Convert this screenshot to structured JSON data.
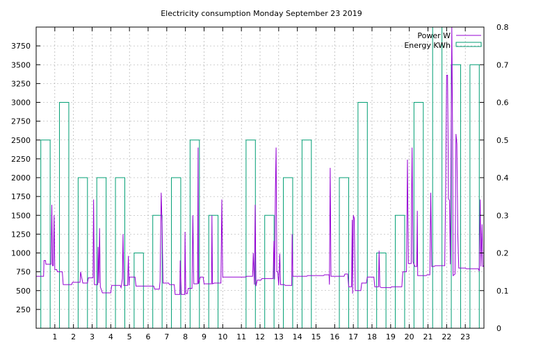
{
  "chart_data": {
    "type": "line",
    "title": "Electricity consumption Monday September 23 2019",
    "x_ticks": [
      "1",
      "2",
      "3",
      "4",
      "5",
      "6",
      "7",
      "8",
      "9",
      "10",
      "11",
      "12",
      "13",
      "14",
      "15",
      "16",
      "17",
      "18",
      "19",
      "20",
      "21",
      "22",
      "23"
    ],
    "xlim": [
      0,
      24
    ],
    "y_left_ticks": [
      "250",
      "500",
      "750",
      "1000",
      "1250",
      "1500",
      "1750",
      "2000",
      "2250",
      "2500",
      "2750",
      "3000",
      "3250",
      "3500",
      "3750"
    ],
    "ylim_left": [
      0,
      4000
    ],
    "y_right_ticks": [
      "0",
      "0.1",
      "0.2",
      "0.3",
      "0.4",
      "0.5",
      "0.6",
      "0.7",
      "0.8"
    ],
    "ylim_right": [
      0,
      0.8
    ],
    "grid": true,
    "legend_position": "top-right",
    "colors": {
      "power": "#9400d3",
      "energy": "#009e73"
    },
    "series": [
      {
        "name": "Power W",
        "axis": "left",
        "style": "line",
        "points": [
          [
            0.0,
            690
          ],
          [
            0.4,
            690
          ],
          [
            0.42,
            900
          ],
          [
            0.5,
            900
          ],
          [
            0.52,
            850
          ],
          [
            0.8,
            850
          ],
          [
            0.84,
            1640
          ],
          [
            0.88,
            830
          ],
          [
            0.92,
            830
          ],
          [
            0.96,
            1500
          ],
          [
            1.0,
            780
          ],
          [
            1.1,
            780
          ],
          [
            1.14,
            750
          ],
          [
            1.4,
            750
          ],
          [
            1.45,
            580
          ],
          [
            1.9,
            580
          ],
          [
            1.95,
            610
          ],
          [
            2.35,
            610
          ],
          [
            2.38,
            750
          ],
          [
            2.42,
            700
          ],
          [
            2.5,
            600
          ],
          [
            2.75,
            600
          ],
          [
            2.8,
            670
          ],
          [
            3.05,
            670
          ],
          [
            3.08,
            1710
          ],
          [
            3.12,
            580
          ],
          [
            3.3,
            580
          ],
          [
            3.32,
            1080
          ],
          [
            3.36,
            600
          ],
          [
            3.4,
            1330
          ],
          [
            3.44,
            550
          ],
          [
            3.55,
            470
          ],
          [
            4.0,
            470
          ],
          [
            4.05,
            570
          ],
          [
            4.5,
            570
          ],
          [
            4.55,
            540
          ],
          [
            4.62,
            660
          ],
          [
            4.66,
            1250
          ],
          [
            4.7,
            570
          ],
          [
            4.9,
            570
          ],
          [
            4.94,
            960
          ],
          [
            4.98,
            570
          ],
          [
            5.0,
            680
          ],
          [
            5.3,
            680
          ],
          [
            5.35,
            560
          ],
          [
            6.3,
            560
          ],
          [
            6.35,
            520
          ],
          [
            6.6,
            520
          ],
          [
            6.64,
            620
          ],
          [
            6.7,
            1800
          ],
          [
            6.75,
            1380
          ],
          [
            6.8,
            600
          ],
          [
            7.1,
            600
          ],
          [
            7.15,
            580
          ],
          [
            7.4,
            580
          ],
          [
            7.45,
            450
          ],
          [
            7.7,
            450
          ],
          [
            7.72,
            900
          ],
          [
            7.78,
            450
          ],
          [
            7.96,
            450
          ],
          [
            7.98,
            1280
          ],
          [
            8.02,
            460
          ],
          [
            8.1,
            460
          ],
          [
            8.15,
            530
          ],
          [
            8.35,
            530
          ],
          [
            8.4,
            1500
          ],
          [
            8.45,
            590
          ],
          [
            8.65,
            590
          ],
          [
            8.68,
            2400
          ],
          [
            8.7,
            590
          ],
          [
            8.8,
            680
          ],
          [
            8.95,
            680
          ],
          [
            9.0,
            590
          ],
          [
            9.4,
            590
          ],
          [
            9.42,
            1500
          ],
          [
            9.45,
            590
          ],
          [
            9.55,
            600
          ],
          [
            9.9,
            600
          ],
          [
            9.95,
            1710
          ],
          [
            10.0,
            680
          ],
          [
            11.2,
            680
          ],
          [
            11.3,
            690
          ],
          [
            11.6,
            690
          ],
          [
            11.64,
            1000
          ],
          [
            11.7,
            580
          ],
          [
            11.74,
            1640
          ],
          [
            11.78,
            560
          ],
          [
            11.85,
            640
          ],
          [
            12.05,
            640
          ],
          [
            12.1,
            660
          ],
          [
            12.7,
            660
          ],
          [
            12.74,
            1160
          ],
          [
            12.78,
            650
          ],
          [
            12.82,
            1800
          ],
          [
            12.86,
            2400
          ],
          [
            12.9,
            750
          ],
          [
            12.95,
            750
          ],
          [
            13.0,
            570
          ],
          [
            13.06,
            990
          ],
          [
            13.1,
            580
          ],
          [
            13.3,
            580
          ],
          [
            13.35,
            570
          ],
          [
            13.7,
            570
          ],
          [
            13.72,
            1250
          ],
          [
            13.76,
            690
          ],
          [
            14.5,
            690
          ],
          [
            14.55,
            700
          ],
          [
            15.4,
            700
          ],
          [
            15.45,
            710
          ],
          [
            15.7,
            710
          ],
          [
            15.72,
            580
          ],
          [
            15.76,
            2130
          ],
          [
            15.8,
            690
          ],
          [
            16.5,
            690
          ],
          [
            16.55,
            720
          ],
          [
            16.7,
            720
          ],
          [
            16.75,
            550
          ],
          [
            16.9,
            550
          ],
          [
            16.94,
            1440
          ],
          [
            16.96,
            460
          ],
          [
            17.0,
            1500
          ],
          [
            17.05,
            1460
          ],
          [
            17.1,
            500
          ],
          [
            17.4,
            500
          ],
          [
            17.45,
            600
          ],
          [
            17.7,
            600
          ],
          [
            17.75,
            680
          ],
          [
            18.1,
            680
          ],
          [
            18.15,
            550
          ],
          [
            18.35,
            550
          ],
          [
            18.38,
            1030
          ],
          [
            18.4,
            840
          ],
          [
            18.42,
            550
          ],
          [
            18.5,
            540
          ],
          [
            19.0,
            540
          ],
          [
            19.05,
            550
          ],
          [
            19.6,
            550
          ],
          [
            19.65,
            750
          ],
          [
            19.85,
            750
          ],
          [
            19.9,
            2240
          ],
          [
            19.95,
            860
          ],
          [
            20.1,
            860
          ],
          [
            20.12,
            1710
          ],
          [
            20.15,
            2400
          ],
          [
            20.2,
            880
          ],
          [
            20.3,
            820
          ],
          [
            20.4,
            820
          ],
          [
            20.43,
            1560
          ],
          [
            20.45,
            700
          ],
          [
            20.9,
            700
          ],
          [
            20.95,
            710
          ],
          [
            21.1,
            710
          ],
          [
            21.15,
            1800
          ],
          [
            21.2,
            820
          ],
          [
            21.3,
            820
          ],
          [
            21.4,
            830
          ],
          [
            21.9,
            830
          ],
          [
            21.95,
            1880
          ],
          [
            22.0,
            3360
          ],
          [
            22.05,
            3360
          ],
          [
            22.1,
            1720
          ],
          [
            22.15,
            1700
          ],
          [
            22.2,
            850
          ],
          [
            22.24,
            2560
          ],
          [
            22.28,
            4000
          ],
          [
            22.32,
            2580
          ],
          [
            22.35,
            700
          ],
          [
            22.45,
            720
          ],
          [
            22.5,
            2580
          ],
          [
            22.55,
            2450
          ],
          [
            22.6,
            1250
          ],
          [
            22.65,
            800
          ],
          [
            23.0,
            800
          ],
          [
            23.05,
            790
          ],
          [
            23.7,
            790
          ],
          [
            23.75,
            760
          ],
          [
            23.8,
            1710
          ],
          [
            23.84,
            820
          ],
          [
            23.9,
            1380
          ],
          [
            23.94,
            820
          ],
          [
            24.0,
            830
          ]
        ]
      },
      {
        "name": "Energy KWh",
        "axis": "right",
        "style": "steps",
        "values": [
          0.5,
          0.6,
          0.4,
          0.4,
          0.4,
          0.2,
          0.3,
          0.4,
          0.5,
          0.3,
          null,
          0.5,
          0.3,
          0.4,
          0.5,
          null,
          0.4,
          0.6,
          0.2,
          0.3,
          0.6,
          0.8,
          0.7,
          0.7
        ]
      }
    ]
  }
}
